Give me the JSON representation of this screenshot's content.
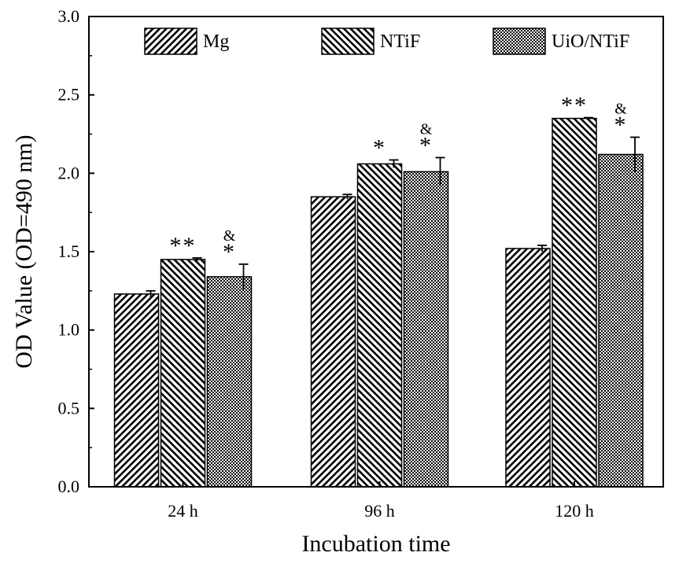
{
  "chart_data": {
    "type": "bar",
    "title": "",
    "xlabel": "Incubation time",
    "ylabel": "OD Value (OD=490 nm)",
    "ylim": [
      0,
      3.0
    ],
    "yticks": [
      "0.0",
      "0.5",
      "1.0",
      "1.5",
      "2.0",
      "2.5",
      "3.0"
    ],
    "categories": [
      "24 h",
      "96 h",
      "120 h"
    ],
    "legend_position": "top",
    "grid": false,
    "series": [
      {
        "name": "Mg",
        "pattern": "diag-right",
        "values": [
          1.23,
          1.85,
          1.52
        ],
        "errors": [
          0.02,
          0.015,
          0.02
        ],
        "marks": [
          "",
          "",
          ""
        ]
      },
      {
        "name": "NTiF",
        "pattern": "diag-left",
        "values": [
          1.45,
          2.06,
          2.35
        ],
        "errors": [
          0.01,
          0.025,
          0.005
        ],
        "marks": [
          "**",
          "*",
          "**"
        ]
      },
      {
        "name": "UiO/NTiF",
        "pattern": "cross-dense",
        "values": [
          1.34,
          2.01,
          2.12
        ],
        "errors": [
          0.08,
          0.09,
          0.11
        ],
        "marks": [
          "*",
          "*",
          "*"
        ],
        "marks_top": [
          "&",
          "&",
          "&"
        ]
      }
    ]
  }
}
